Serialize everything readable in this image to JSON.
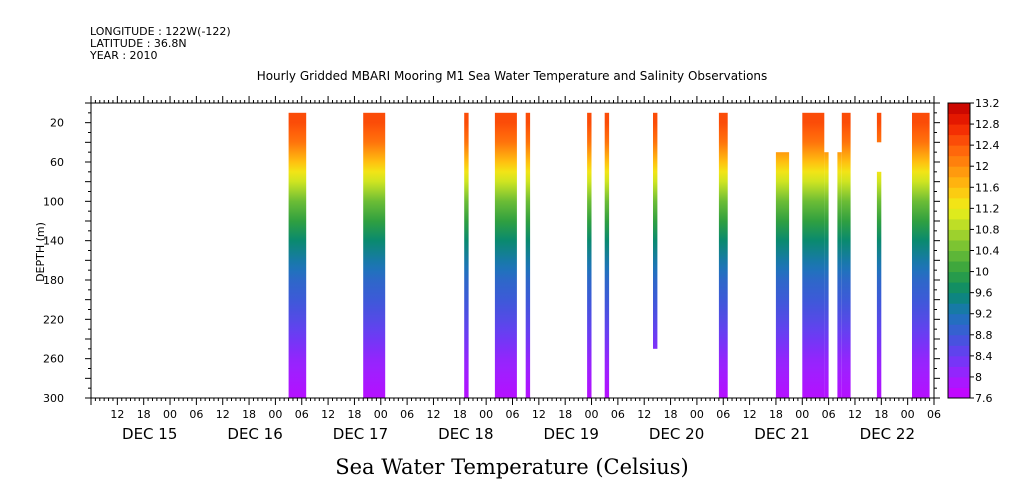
{
  "header": {
    "longitude": "LONGITUDE : 122W(-122)",
    "latitude": "LATITUDE : 36.8N",
    "year": "YEAR : 2010"
  },
  "chart_data": {
    "type": "heatmap",
    "title": "Hourly Gridded MBARI Mooring M1 Sea Water Temperature and Salinity Observations",
    "xlabel": "Sea Water Temperature (Celsius)",
    "ylabel": "DEPTH (m)",
    "y_axis": {
      "range": [
        300,
        0
      ],
      "inverted": true,
      "ticks": [
        20,
        60,
        100,
        140,
        180,
        220,
        260,
        300
      ]
    },
    "x_axis": {
      "unit": "hours since Dec 14 00:00, 2010",
      "range": [
        6,
        198
      ],
      "hour_tick_labels": [
        "12",
        "18",
        "00",
        "06",
        "12",
        "18",
        "00",
        "06",
        "12",
        "18",
        "00",
        "06",
        "12",
        "18",
        "00",
        "06",
        "12",
        "18",
        "00",
        "06",
        "12",
        "18",
        "00",
        "06",
        "12",
        "18",
        "00",
        "06",
        "12",
        "18",
        "00",
        "06"
      ],
      "day_labels": [
        "DEC 15",
        "DEC 16",
        "DEC 17",
        "DEC 18",
        "DEC 19",
        "DEC 20",
        "DEC 21",
        "DEC 22"
      ]
    },
    "colorbar": {
      "min": 7.6,
      "max": 13.2,
      "step": 0.2,
      "labels": [
        "13.2",
        "12.8",
        "12.4",
        "12",
        "11.6",
        "11.2",
        "10.8",
        "10.4",
        "10",
        "9.6",
        "9.2",
        "8.8",
        "8.4",
        "8",
        "7.6"
      ]
    },
    "value_profile": {
      "depths": [
        20,
        40,
        60,
        80,
        100,
        140,
        180,
        220,
        260,
        300
      ],
      "temps": [
        12.5,
        12.2,
        11.6,
        11.0,
        10.4,
        9.6,
        9.0,
        8.6,
        8.1,
        7.8
      ]
    },
    "observation_columns": [
      {
        "start": "Dec 16 03:00",
        "end": "Dec 16 07:00",
        "top_depth": 20,
        "bottom_depth": 300
      },
      {
        "start": "Dec 16 20:00",
        "end": "Dec 17 01:00",
        "top_depth": 20,
        "bottom_depth": 300
      },
      {
        "start": "Dec 17 19:00",
        "end": "Dec 17 20:00",
        "top_depth": 20,
        "bottom_depth": 300
      },
      {
        "start": "Dec 18 02:00",
        "end": "Dec 18 07:00",
        "top_depth": 20,
        "bottom_depth": 300
      },
      {
        "start": "Dec 18 09:00",
        "end": "Dec 18 10:00",
        "top_depth": 20,
        "bottom_depth": 300
      },
      {
        "start": "Dec 18 23:00",
        "end": "Dec 19 00:00",
        "top_depth": 20,
        "bottom_depth": 300
      },
      {
        "start": "Dec 19 03:00",
        "end": "Dec 19 04:00",
        "top_depth": 20,
        "bottom_depth": 300
      },
      {
        "start": "Dec 19 14:00",
        "end": "Dec 19 15:00",
        "top_depth": 20,
        "bottom_depth": 250
      },
      {
        "start": "Dec 20 05:00",
        "end": "Dec 20 07:00",
        "top_depth": 20,
        "bottom_depth": 300
      },
      {
        "start": "Dec 20 18:00",
        "end": "Dec 20 21:00",
        "top_depth": 60,
        "bottom_depth": 300
      },
      {
        "start": "Dec 21 00:00",
        "end": "Dec 21 05:00",
        "top_depth": 20,
        "bottom_depth": 300
      },
      {
        "start": "Dec 21 05:00",
        "end": "Dec 21 06:00",
        "top_depth": 60,
        "bottom_depth": 300
      },
      {
        "start": "Dec 21 08:00",
        "end": "Dec 21 09:00",
        "top_depth": 60,
        "bottom_depth": 300
      },
      {
        "start": "Dec 21 09:00",
        "end": "Dec 21 11:00",
        "top_depth": 20,
        "bottom_depth": 300
      },
      {
        "start": "Dec 21 17:00",
        "end": "Dec 21 18:00",
        "top_depth": 20,
        "bottom_depth": 40
      },
      {
        "start": "Dec 21 17:00",
        "end": "Dec 21 18:00",
        "top_depth": 80,
        "bottom_depth": 300
      },
      {
        "start": "Dec 22 01:00",
        "end": "Dec 22 05:00",
        "top_depth": 20,
        "bottom_depth": 300
      }
    ]
  }
}
